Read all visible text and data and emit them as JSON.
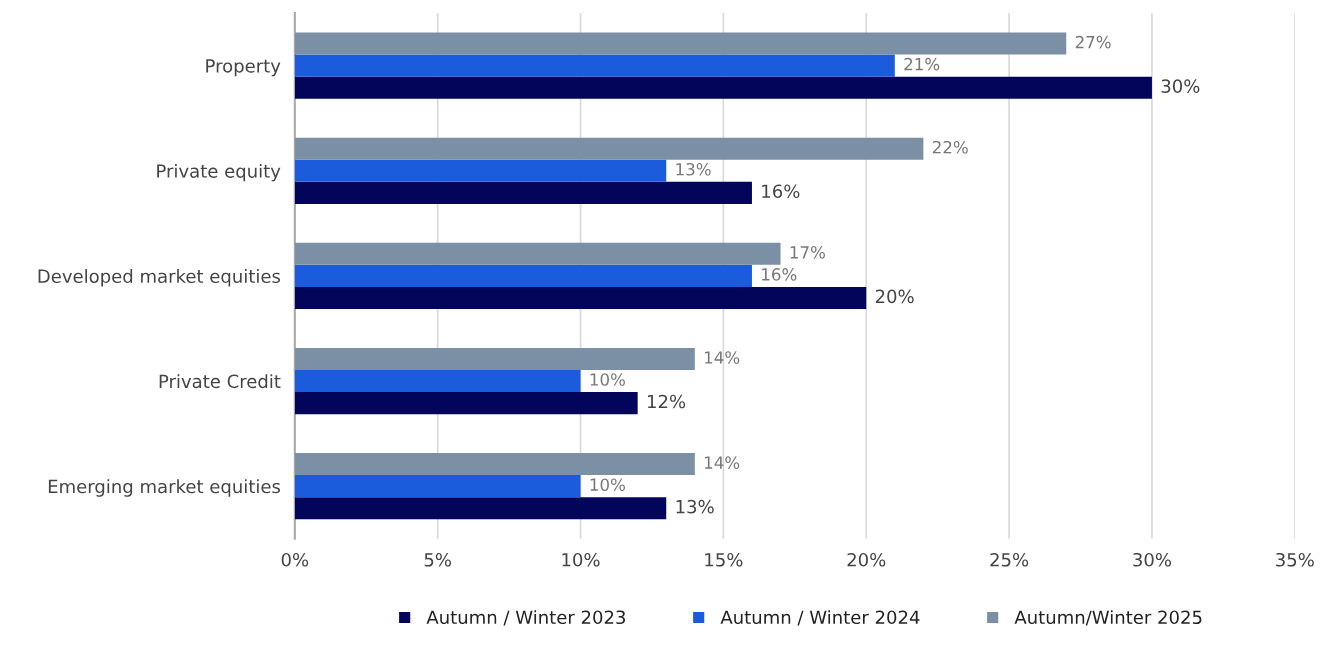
{
  "chart_data": {
    "type": "bar",
    "orientation": "horizontal",
    "categories": [
      "Property",
      "Private equity",
      "Developed market equities",
      "Private Credit",
      "Emerging market equities"
    ],
    "series": [
      {
        "name": "Autumn / Winter 2023",
        "color": "#02055a",
        "values": [
          30,
          16,
          20,
          12,
          13
        ],
        "value_labels": [
          "30%",
          "16%",
          "20%",
          "12%",
          "13%"
        ]
      },
      {
        "name": "Autumn / Winter 2024",
        "color": "#1a5cdb",
        "values": [
          21,
          13,
          16,
          10,
          10
        ],
        "value_labels": [
          "21%",
          "13%",
          "16%",
          "10%",
          "10%"
        ]
      },
      {
        "name": "Autumn/Winter 2025",
        "color": "#7b8fa5",
        "values": [
          27,
          22,
          17,
          14,
          14
        ],
        "value_labels": [
          "27%",
          "22%",
          "17%",
          "14%",
          "14%"
        ]
      }
    ],
    "xlim": [
      0,
      35
    ],
    "xticks": [
      {
        "value": 0,
        "label": "0%"
      },
      {
        "value": 5,
        "label": "5%"
      },
      {
        "value": 10,
        "label": "10%"
      },
      {
        "value": 15,
        "label": "15%"
      },
      {
        "value": 20,
        "label": "20%"
      },
      {
        "value": 25,
        "label": "25%"
      },
      {
        "value": 30,
        "label": "30%"
      },
      {
        "value": 35,
        "label": "35%"
      }
    ],
    "grid": "x",
    "legend": "bottom"
  }
}
